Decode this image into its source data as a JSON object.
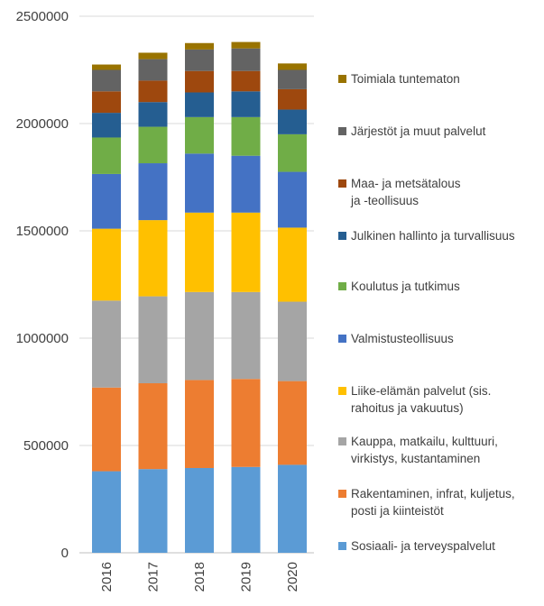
{
  "chart_data": {
    "type": "bar",
    "stacked": true,
    "title": "",
    "xlabel": "",
    "ylabel": "",
    "ylim": [
      0,
      2500000
    ],
    "yticks": [
      0,
      500000,
      1000000,
      1500000,
      2000000,
      2500000
    ],
    "grid": true,
    "legend_position": "right",
    "categories": [
      "2016",
      "2017",
      "2018",
      "2019",
      "2020"
    ],
    "series": [
      {
        "name": "Sosiaali- ja terveyspalvelut",
        "color": "#5b9bd5",
        "values": [
          380000,
          390000,
          395000,
          400000,
          410000
        ]
      },
      {
        "name": "Rakentaminen, infrat, kuljetus, posti ja kiinteistöt",
        "color": "#ed7d31",
        "values": [
          390000,
          400000,
          410000,
          410000,
          390000
        ]
      },
      {
        "name": "Kauppa, matkailu, kulttuuri, virkistys, kustantaminen",
        "color": "#a5a5a5",
        "values": [
          405000,
          405000,
          410000,
          405000,
          370000
        ]
      },
      {
        "name": "Liike-elämän palvelut (sis. rahoitus ja vakuutus)",
        "color": "#ffc000",
        "values": [
          335000,
          355000,
          370000,
          370000,
          345000
        ]
      },
      {
        "name": "Valmistusteollisuus",
        "color": "#4472c4",
        "values": [
          255000,
          265000,
          275000,
          265000,
          260000
        ]
      },
      {
        "name": "Koulutus ja tutkimus",
        "color": "#70ad47",
        "values": [
          170000,
          170000,
          170000,
          180000,
          175000
        ]
      },
      {
        "name": "Julkinen hallinto ja turvallisuus",
        "color": "#255e91",
        "values": [
          115000,
          115000,
          115000,
          120000,
          115000
        ]
      },
      {
        "name": "Maa- ja metsätalous ja -teollisuus",
        "color": "#9e480e",
        "values": [
          100000,
          100000,
          100000,
          95000,
          95000
        ]
      },
      {
        "name": "Järjestöt ja muut palvelut",
        "color": "#636363",
        "values": [
          100000,
          100000,
          100000,
          105000,
          90000
        ]
      },
      {
        "name": "Toimiala tuntematon",
        "color": "#997300",
        "values": [
          25000,
          30000,
          30000,
          30000,
          30000
        ]
      }
    ]
  }
}
